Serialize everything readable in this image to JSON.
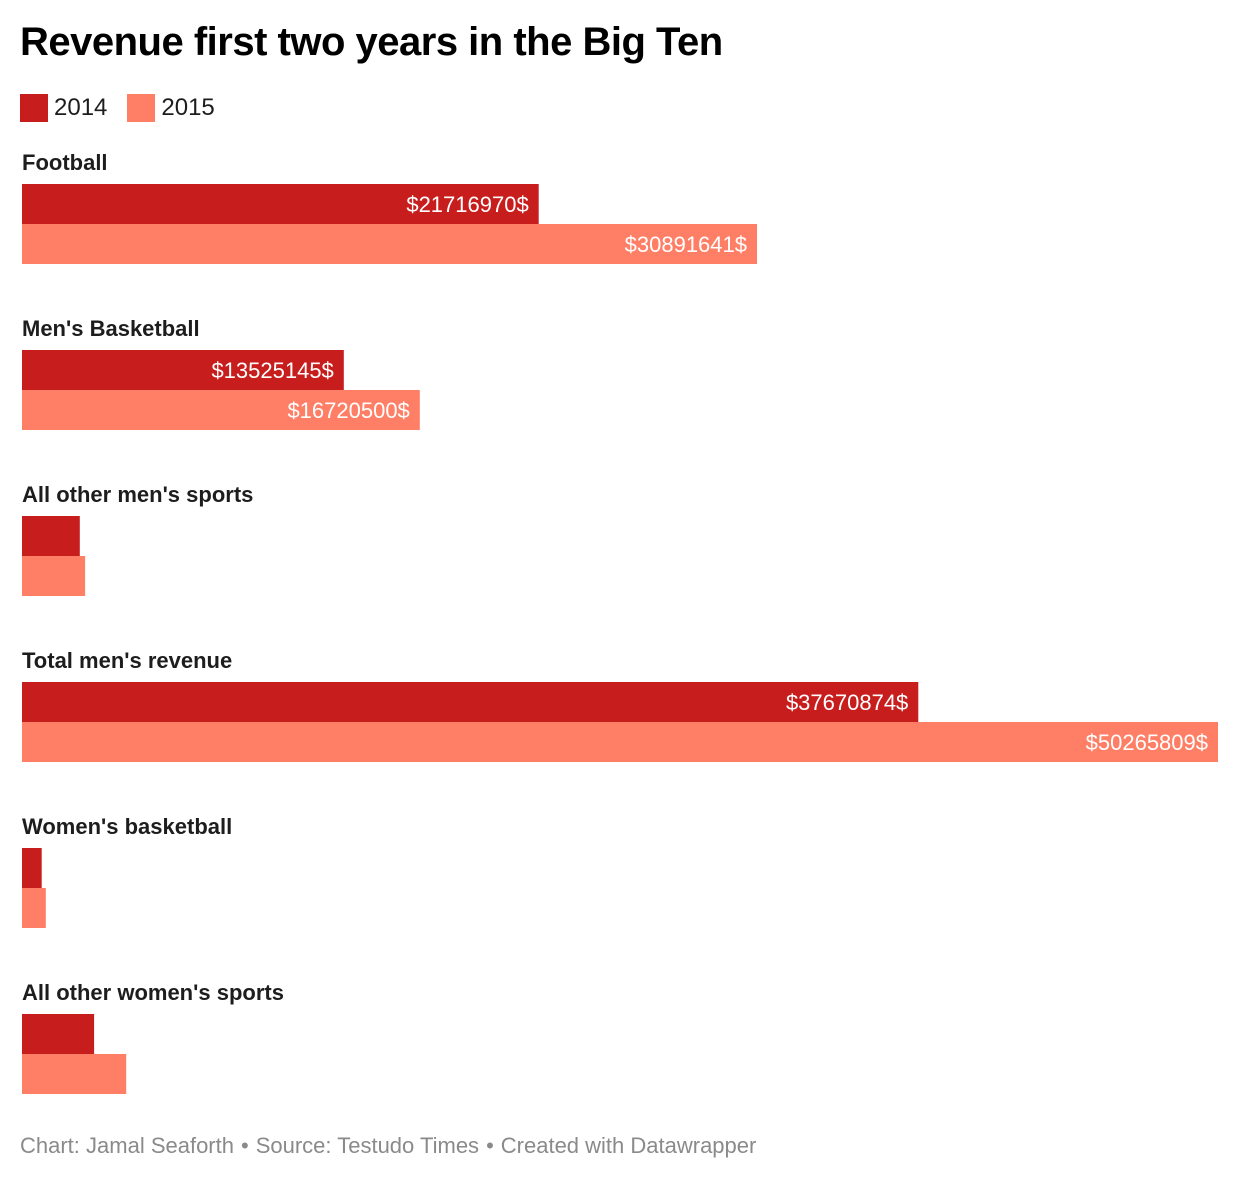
{
  "chart_data": {
    "type": "bar",
    "orientation": "horizontal",
    "grouped": true,
    "title": "Revenue first two years in the Big Ten",
    "categories": [
      "Football",
      "Men's Basketball",
      "All other men's sports",
      "Total men's revenue",
      "Women's basketball",
      "All other women's sports"
    ],
    "series": [
      {
        "name": "2014",
        "color": "#c71e1d",
        "values": [
          21716970,
          13525145,
          2428759,
          37670874,
          830000,
          3030000
        ],
        "labels": [
          "$21716970$",
          "$13525145$",
          "",
          "$37670874$",
          "",
          ""
        ]
      },
      {
        "name": "2015",
        "color": "#ff7f66",
        "values": [
          30891641,
          16720500,
          2653668,
          50265809,
          1000000,
          4380000
        ],
        "labels": [
          "$30891641$",
          "$16720500$",
          "",
          "$50265809$",
          "",
          ""
        ]
      }
    ],
    "xlim": [
      0,
      50265809
    ],
    "grid": false,
    "legend_position": "top-left",
    "footer": {
      "chart": "Chart: Jamal Seaforth",
      "source": "Source: Testudo Times",
      "created": "Created with Datawrapper",
      "separator": "•"
    }
  }
}
